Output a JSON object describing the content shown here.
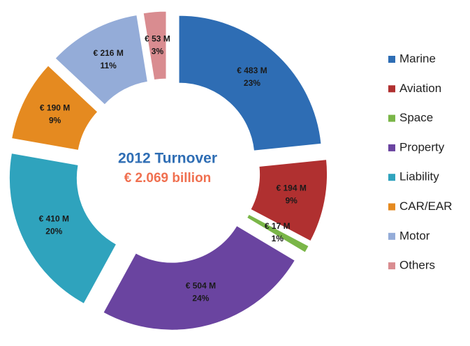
{
  "chart_data": {
    "type": "donut",
    "title": "2012 Turnover",
    "subtitle": "€ 2.069 billion",
    "categories": [
      "Marine",
      "Aviation",
      "Space",
      "Property",
      "Liability",
      "CAR/EAR",
      "Motor",
      "Others"
    ],
    "values": [
      483,
      194,
      17,
      504,
      410,
      190,
      216,
      53
    ],
    "value_labels": [
      "€ 483 M",
      "€ 194 M",
      "€ 17 M",
      "€ 504 M",
      "€ 410 M",
      "€ 190 M",
      "€ 216 M",
      "€ 53 M"
    ],
    "percent_labels": [
      "23%",
      "9%",
      "1%",
      "24%",
      "20%",
      "9%",
      "11%",
      "3%"
    ],
    "colors": [
      "#2e6db4",
      "#b03030",
      "#7ab648",
      "#6a44a0",
      "#2fa3bd",
      "#e58a20",
      "#94acd8",
      "#d98c90"
    ],
    "legend": "right"
  }
}
